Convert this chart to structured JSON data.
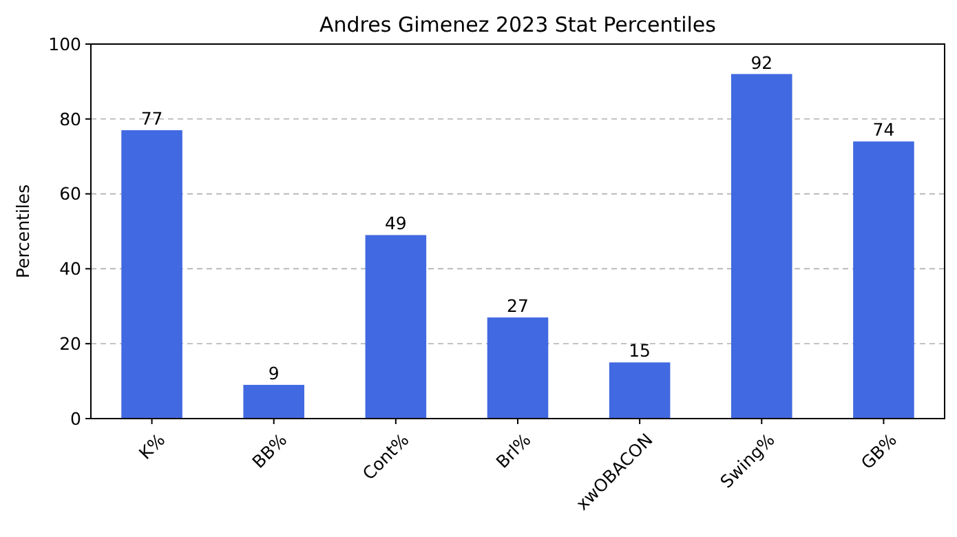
{
  "chart_data": {
    "type": "bar",
    "title": "Andres Gimenez 2023 Stat Percentiles",
    "ylabel": "Percentiles",
    "categories": [
      "K%",
      "BB%",
      "Cont%",
      "Brl%",
      "xwOBACON",
      "Swing%",
      "GB%"
    ],
    "values": [
      77,
      9,
      49,
      27,
      15,
      92,
      74
    ],
    "color": "#4169e1",
    "ylim": [
      0,
      100
    ],
    "yticks": [
      0,
      20,
      40,
      60,
      80,
      100
    ],
    "grid": "y",
    "data_labels": true
  }
}
